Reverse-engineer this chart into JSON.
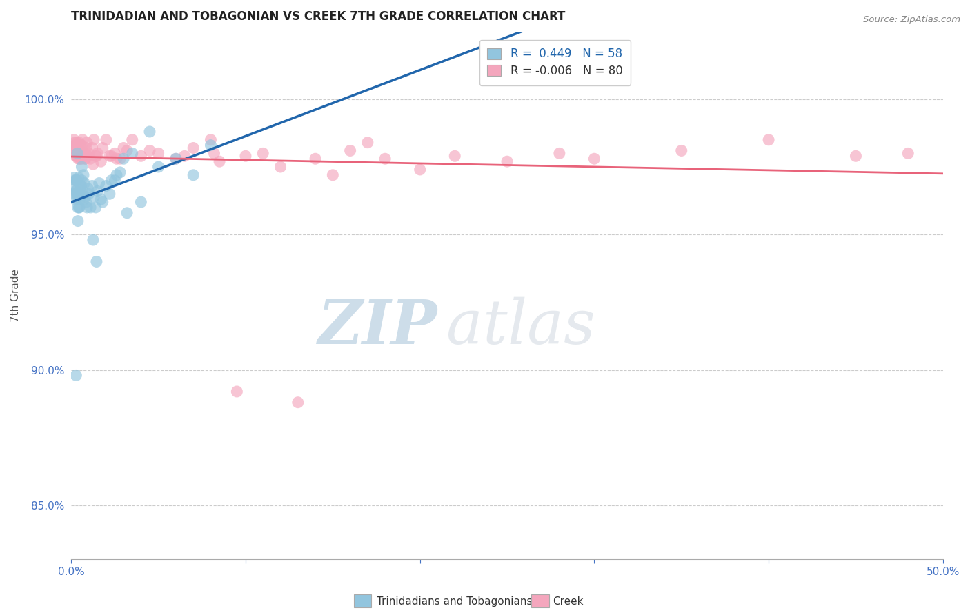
{
  "title": "TRINIDADIAN AND TOBAGONIAN VS CREEK 7TH GRADE CORRELATION CHART",
  "source_text": "Source: ZipAtlas.com",
  "xlabel_bottom": "Trinidadians and Tobagonians",
  "xlabel_bottom2": "Creek",
  "ylabel": "7th Grade",
  "xlim": [
    0.0,
    50.0
  ],
  "ylim": [
    83.0,
    102.5
  ],
  "xtick_labels": [
    "0.0%",
    "",
    "",
    "",
    "",
    "50.0%"
  ],
  "ytick_labels": [
    "85.0%",
    "90.0%",
    "95.0%",
    "100.0%"
  ],
  "yticks": [
    85.0,
    90.0,
    95.0,
    100.0
  ],
  "blue_R": 0.449,
  "blue_N": 58,
  "pink_R": -0.006,
  "pink_N": 80,
  "blue_color": "#92c5de",
  "pink_color": "#f4a6bd",
  "blue_line_color": "#2166ac",
  "pink_line_color": "#e8637a",
  "watermark_zip": "ZIP",
  "watermark_atlas": "atlas",
  "blue_x": [
    0.1,
    0.15,
    0.18,
    0.2,
    0.22,
    0.25,
    0.28,
    0.3,
    0.32,
    0.35,
    0.38,
    0.4,
    0.42,
    0.45,
    0.48,
    0.5,
    0.55,
    0.6,
    0.65,
    0.7,
    0.75,
    0.8,
    0.85,
    0.9,
    0.95,
    1.0,
    1.1,
    1.2,
    1.3,
    1.4,
    1.5,
    1.6,
    1.8,
    2.0,
    2.2,
    2.5,
    2.8,
    3.0,
    3.5,
    4.0,
    5.0,
    6.0,
    7.0,
    8.0,
    3.2,
    2.3,
    1.7,
    0.55,
    0.45,
    0.38,
    1.25,
    1.45,
    0.6,
    0.72,
    2.6,
    4.5,
    0.28,
    0.35
  ],
  "blue_y": [
    96.8,
    97.1,
    96.5,
    97.0,
    96.3,
    96.6,
    97.0,
    96.6,
    97.0,
    96.5,
    96.0,
    96.4,
    97.1,
    96.0,
    96.3,
    96.5,
    96.8,
    97.0,
    96.6,
    97.2,
    96.9,
    96.4,
    96.2,
    96.0,
    96.7,
    96.5,
    96.0,
    96.8,
    96.4,
    96.0,
    96.6,
    96.9,
    96.2,
    96.8,
    96.5,
    97.0,
    97.3,
    97.8,
    98.0,
    96.2,
    97.5,
    97.8,
    97.2,
    98.3,
    95.8,
    97.0,
    96.3,
    96.8,
    96.0,
    95.5,
    94.8,
    94.0,
    97.5,
    96.3,
    97.2,
    98.8,
    89.8,
    98.0
  ],
  "pink_x": [
    0.1,
    0.15,
    0.18,
    0.2,
    0.22,
    0.25,
    0.28,
    0.3,
    0.32,
    0.35,
    0.38,
    0.4,
    0.42,
    0.45,
    0.5,
    0.55,
    0.6,
    0.65,
    0.7,
    0.75,
    0.8,
    0.85,
    0.9,
    0.95,
    1.0,
    1.1,
    1.2,
    1.3,
    1.4,
    1.5,
    1.8,
    2.0,
    2.2,
    2.5,
    2.8,
    3.0,
    3.5,
    4.0,
    5.0,
    6.0,
    7.0,
    8.0,
    10.0,
    12.0,
    15.0,
    18.0,
    20.0,
    25.0,
    1.25,
    0.52,
    0.72,
    0.82,
    3.2,
    2.3,
    1.7,
    4.5,
    0.35,
    0.45,
    6.5,
    8.5,
    11.0,
    14.0,
    16.0,
    17.0,
    22.0,
    28.0,
    30.0,
    35.0,
    40.0,
    45.0,
    48.0,
    0.28,
    0.38,
    1.45,
    2.6,
    8.2,
    9.5,
    13.0,
    0.25,
    0.6
  ],
  "pink_y": [
    98.2,
    98.5,
    98.0,
    98.4,
    98.1,
    97.9,
    98.3,
    98.1,
    98.4,
    97.9,
    98.0,
    97.8,
    98.2,
    98.4,
    98.0,
    97.8,
    98.3,
    98.5,
    97.9,
    98.0,
    97.8,
    98.2,
    98.4,
    97.9,
    98.0,
    97.8,
    98.2,
    98.5,
    97.9,
    98.0,
    98.2,
    98.5,
    97.9,
    98.0,
    97.8,
    98.2,
    98.5,
    97.9,
    98.0,
    97.8,
    98.2,
    98.5,
    97.9,
    97.5,
    97.2,
    97.8,
    97.4,
    97.7,
    97.6,
    98.3,
    98.0,
    97.8,
    98.1,
    97.9,
    97.7,
    98.1,
    98.0,
    97.8,
    97.9,
    97.7,
    98.0,
    97.8,
    98.1,
    98.4,
    97.9,
    98.0,
    97.8,
    98.1,
    98.5,
    97.9,
    98.0,
    98.2,
    97.9,
    97.9,
    97.8,
    98.0,
    89.2,
    88.8,
    98.3,
    97.8
  ]
}
